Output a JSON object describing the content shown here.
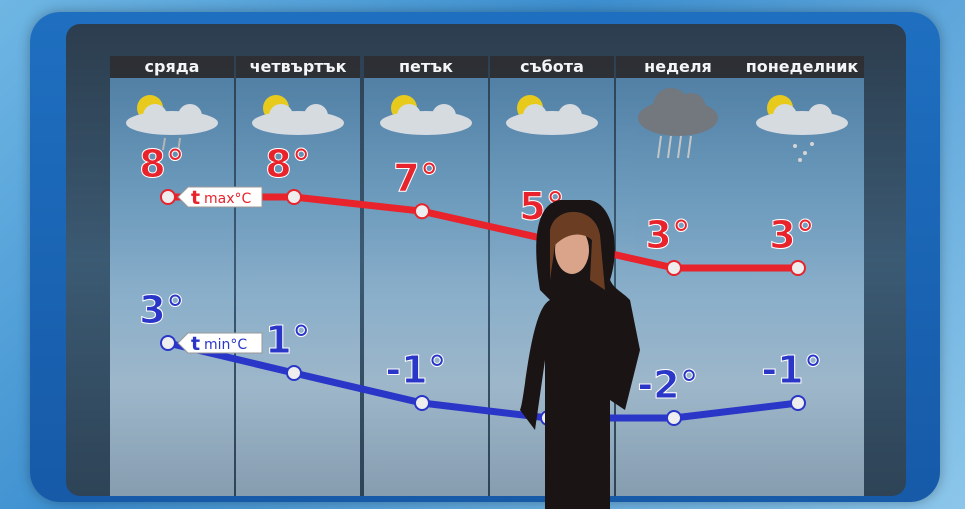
{
  "days": [
    {
      "name": "сряда",
      "icon": "sun-cloud-light-rain-icon"
    },
    {
      "name": "четвъртък",
      "icon": "sun-cloud-icon"
    },
    {
      "name": "петък",
      "icon": "sun-cloud-icon"
    },
    {
      "name": "събота",
      "icon": "sun-cloud-icon"
    },
    {
      "name": "неделя",
      "icon": "rain-cloud-icon"
    },
    {
      "name": "понеделник",
      "icon": "sun-cloud-snow-icon"
    }
  ],
  "chart_data": {
    "type": "line",
    "categories": [
      "сряда",
      "четвъртък",
      "петък",
      "събота",
      "неделя",
      "понеделник"
    ],
    "series": [
      {
        "name": "t max°C",
        "label_main": "t",
        "label_sub": "max°C",
        "color": "#e8232b",
        "values": [
          8,
          8,
          7,
          5,
          3,
          3
        ],
        "labels": [
          "8°",
          "8°",
          "7°",
          "5°",
          "3°",
          "3°"
        ]
      },
      {
        "name": "t min°C",
        "label_main": "t",
        "label_sub": "min°C",
        "color": "#2a36c8",
        "values": [
          3,
          1,
          -1,
          -2,
          -2,
          -1
        ],
        "labels": [
          "3°",
          "1°",
          "-1°",
          "",
          "-2°",
          "-1°"
        ]
      }
    ]
  }
}
